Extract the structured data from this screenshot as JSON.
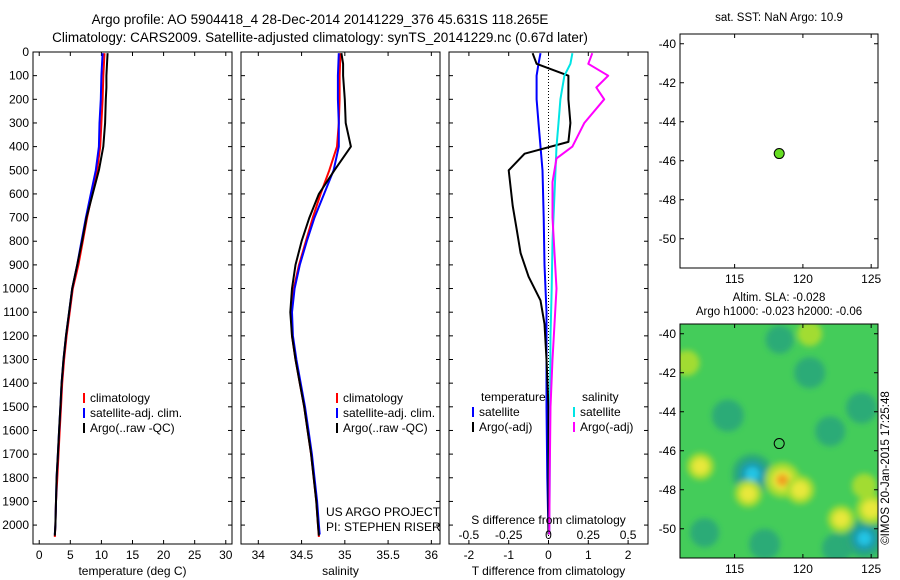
{
  "title": {
    "line1": "Argo profile: AO 5904418_4 28-Dec-2014 20141229_376 45.631S 118.265E",
    "line2": "Climatology: CARS2009. Satellite-adjusted climatology: synTS_20141229.nc (0.67d later)"
  },
  "colors": {
    "climatology": "#ff0000",
    "satellite": "#0000ff",
    "argo": "#000000",
    "salinity_satellite": "#00e5e5",
    "salinity_argo": "#ff00ff",
    "float_marker": "#66dd22"
  },
  "chart_data": [
    {
      "id": "temperature",
      "type": "line",
      "xlabel": "temperature (deg C)",
      "ylabel": "",
      "xlim": [
        -1,
        31
      ],
      "ylim": [
        2080,
        0
      ],
      "xticks": [
        0,
        5,
        10,
        15,
        20,
        25,
        30
      ],
      "yticks": [
        0,
        100,
        200,
        300,
        400,
        500,
        600,
        700,
        800,
        900,
        1000,
        1100,
        1200,
        1300,
        1400,
        1500,
        1600,
        1700,
        1800,
        1900,
        2000
      ],
      "legend": [
        "climatology",
        "satellite-adj. clim.",
        "Argo(..raw -QC)"
      ],
      "legend_position": "lower-center",
      "series": [
        {
          "name": "climatology",
          "color": "#ff0000",
          "points": [
            [
              10.5,
              5
            ],
            [
              10.3,
              100
            ],
            [
              10.2,
              200
            ],
            [
              10.0,
              300
            ],
            [
              9.8,
              400
            ],
            [
              9.3,
              500
            ],
            [
              8.5,
              600
            ],
            [
              7.7,
              700
            ],
            [
              7.0,
              800
            ],
            [
              6.3,
              900
            ],
            [
              5.4,
              1000
            ],
            [
              4.9,
              1100
            ],
            [
              4.4,
              1200
            ],
            [
              4.0,
              1300
            ],
            [
              3.7,
              1400
            ],
            [
              3.5,
              1500
            ],
            [
              3.3,
              1600
            ],
            [
              3.1,
              1700
            ],
            [
              2.9,
              1800
            ],
            [
              2.7,
              1900
            ],
            [
              2.6,
              2000
            ],
            [
              2.5,
              2050
            ]
          ]
        },
        {
          "name": "satellite-adj. clim.",
          "color": "#0000ff",
          "points": [
            [
              10.2,
              5
            ],
            [
              10.0,
              100
            ],
            [
              9.9,
              200
            ],
            [
              9.7,
              300
            ],
            [
              9.6,
              400
            ],
            [
              9.1,
              500
            ],
            [
              8.3,
              600
            ],
            [
              7.5,
              700
            ],
            [
              6.8,
              800
            ],
            [
              6.1,
              900
            ],
            [
              5.3,
              1000
            ],
            [
              4.8,
              1100
            ],
            [
              4.3,
              1200
            ],
            [
              3.9,
              1300
            ],
            [
              3.6,
              1400
            ],
            [
              3.4,
              1500
            ],
            [
              3.2,
              1600
            ],
            [
              3.0,
              1700
            ],
            [
              2.8,
              1800
            ],
            [
              2.7,
              1900
            ],
            [
              2.6,
              2000
            ],
            [
              2.5,
              2040
            ]
          ]
        },
        {
          "name": "Argo(..raw -QC)",
          "color": "#000000",
          "points": [
            [
              11.0,
              5
            ],
            [
              10.9,
              50
            ],
            [
              10.8,
              100
            ],
            [
              10.8,
              150
            ],
            [
              10.7,
              200
            ],
            [
              10.6,
              300
            ],
            [
              10.3,
              400
            ],
            [
              9.6,
              500
            ],
            [
              8.6,
              600
            ],
            [
              7.6,
              700
            ],
            [
              6.9,
              800
            ],
            [
              6.1,
              900
            ],
            [
              5.3,
              1000
            ],
            [
              4.8,
              1100
            ],
            [
              4.3,
              1200
            ],
            [
              3.9,
              1300
            ],
            [
              3.6,
              1400
            ],
            [
              3.4,
              1500
            ],
            [
              3.2,
              1600
            ],
            [
              3.0,
              1700
            ],
            [
              2.8,
              1800
            ],
            [
              2.7,
              1900
            ],
            [
              2.6,
              2000
            ],
            [
              2.5,
              2045
            ]
          ]
        }
      ]
    },
    {
      "id": "salinity",
      "type": "line",
      "xlabel": "salinity",
      "ylabel": "",
      "xlim": [
        33.8,
        36.1
      ],
      "ylim": [
        2080,
        0
      ],
      "xticks": [
        34,
        34.5,
        35,
        35.5,
        36
      ],
      "legend": [
        "climatology",
        "satellite-adj. clim.",
        "Argo(..raw -QC)"
      ],
      "legend_position": "lower-right",
      "annotation": [
        "US ARGO PROJECT",
        "PI: STEPHEN RISER"
      ],
      "series": [
        {
          "name": "climatology",
          "color": "#ff0000",
          "points": [
            [
              34.95,
              5
            ],
            [
              34.94,
              100
            ],
            [
              34.94,
              200
            ],
            [
              34.93,
              300
            ],
            [
              34.91,
              400
            ],
            [
              34.82,
              500
            ],
            [
              34.72,
              600
            ],
            [
              34.63,
              700
            ],
            [
              34.55,
              800
            ],
            [
              34.47,
              900
            ],
            [
              34.41,
              1000
            ],
            [
              34.38,
              1100
            ],
            [
              34.39,
              1200
            ],
            [
              34.43,
              1300
            ],
            [
              34.48,
              1400
            ],
            [
              34.53,
              1500
            ],
            [
              34.57,
              1600
            ],
            [
              34.61,
              1700
            ],
            [
              34.64,
              1800
            ],
            [
              34.67,
              1900
            ],
            [
              34.69,
              2000
            ],
            [
              34.7,
              2050
            ]
          ]
        },
        {
          "name": "satellite-adj. clim.",
          "color": "#0000ff",
          "points": [
            [
              34.93,
              5
            ],
            [
              34.92,
              100
            ],
            [
              34.92,
              200
            ],
            [
              34.93,
              300
            ],
            [
              34.93,
              400
            ],
            [
              34.87,
              500
            ],
            [
              34.76,
              600
            ],
            [
              34.65,
              700
            ],
            [
              34.56,
              800
            ],
            [
              34.48,
              900
            ],
            [
              34.42,
              1000
            ],
            [
              34.39,
              1100
            ],
            [
              34.4,
              1200
            ],
            [
              34.44,
              1300
            ],
            [
              34.49,
              1400
            ],
            [
              34.54,
              1500
            ],
            [
              34.58,
              1600
            ],
            [
              34.62,
              1700
            ],
            [
              34.65,
              1800
            ],
            [
              34.68,
              1900
            ],
            [
              34.7,
              2000
            ],
            [
              34.71,
              2040
            ]
          ]
        },
        {
          "name": "Argo(..raw -QC)",
          "color": "#000000",
          "points": [
            [
              34.96,
              5
            ],
            [
              34.98,
              50
            ],
            [
              34.98,
              100
            ],
            [
              35.0,
              200
            ],
            [
              35.01,
              300
            ],
            [
              35.07,
              400
            ],
            [
              34.88,
              500
            ],
            [
              34.7,
              600
            ],
            [
              34.59,
              700
            ],
            [
              34.5,
              800
            ],
            [
              34.43,
              900
            ],
            [
              34.39,
              1000
            ],
            [
              34.37,
              1100
            ],
            [
              34.39,
              1200
            ],
            [
              34.43,
              1300
            ],
            [
              34.48,
              1400
            ],
            [
              34.53,
              1500
            ],
            [
              34.57,
              1600
            ],
            [
              34.61,
              1700
            ],
            [
              34.64,
              1800
            ],
            [
              34.67,
              1900
            ],
            [
              34.69,
              2000
            ],
            [
              34.7,
              2045
            ]
          ]
        }
      ]
    },
    {
      "id": "difference",
      "type": "line",
      "xlabel": "T difference from climatology",
      "xlabel2": "S difference from climatology",
      "xlim": [
        -2.5,
        2.5
      ],
      "ylim": [
        2080,
        0
      ],
      "xticks": [
        -2,
        -1,
        0,
        1,
        2
      ],
      "xticklabels": [
        "-2",
        "-1",
        "0",
        "1",
        "2"
      ],
      "xticks2": [
        -2,
        -1,
        0,
        1,
        2
      ],
      "xticklabels2": [
        "-0.5",
        "-0.25",
        "0",
        "0.25",
        "0.5"
      ],
      "legend_headers": [
        "temperature",
        "salinity"
      ],
      "legend": [
        "satellite",
        "Argo(-adj)",
        "satellite",
        "Argo(-adj)"
      ],
      "series": [
        {
          "name": "temperature satellite",
          "color": "#0000ff",
          "points": [
            [
              -0.2,
              5
            ],
            [
              -0.25,
              50
            ],
            [
              -0.3,
              100
            ],
            [
              -0.3,
              200
            ],
            [
              -0.25,
              300
            ],
            [
              -0.2,
              400
            ],
            [
              -0.15,
              500
            ],
            [
              -0.12,
              700
            ],
            [
              -0.1,
              900
            ],
            [
              -0.05,
              1100
            ],
            [
              -0.05,
              1300
            ],
            [
              -0.05,
              1500
            ],
            [
              -0.03,
              1800
            ],
            [
              0,
              2040
            ]
          ]
        },
        {
          "name": "temperature Argo(-adj)",
          "color": "#000000",
          "points": [
            [
              -0.4,
              5
            ],
            [
              -0.3,
              50
            ],
            [
              0.5,
              100
            ],
            [
              0.5,
              200
            ],
            [
              0.55,
              300
            ],
            [
              0.5,
              380
            ],
            [
              -0.6,
              430
            ],
            [
              -1.0,
              500
            ],
            [
              -0.9,
              650
            ],
            [
              -0.8,
              750
            ],
            [
              -0.7,
              850
            ],
            [
              -0.5,
              950
            ],
            [
              -0.2,
              1050
            ],
            [
              -0.1,
              1150
            ],
            [
              -0.05,
              1300
            ],
            [
              0,
              1500
            ],
            [
              0,
              1800
            ],
            [
              0,
              2040
            ]
          ]
        },
        {
          "name": "salinity satellite",
          "color": "#00e5e5",
          "points": [
            [
              0.6,
              5
            ],
            [
              0.55,
              50
            ],
            [
              0.4,
              100
            ],
            [
              0.3,
              200
            ],
            [
              0.25,
              300
            ],
            [
              0.2,
              400
            ],
            [
              0.15,
              600
            ],
            [
              0.1,
              800
            ],
            [
              0.08,
              1000
            ],
            [
              0.05,
              1200
            ],
            [
              0.04,
              1500
            ],
            [
              0.03,
              1800
            ],
            [
              0.02,
              2040
            ]
          ]
        },
        {
          "name": "salinity Argo(-adj)",
          "color": "#ff00ff",
          "points": [
            [
              1.1,
              5
            ],
            [
              1.0,
              50
            ],
            [
              1.5,
              100
            ],
            [
              1.2,
              150
            ],
            [
              1.4,
              200
            ],
            [
              0.9,
              300
            ],
            [
              0.6,
              400
            ],
            [
              0.2,
              450
            ],
            [
              0.1,
              550
            ],
            [
              0.1,
              700
            ],
            [
              0.15,
              850
            ],
            [
              0.2,
              1000
            ],
            [
              0.15,
              1150
            ],
            [
              0.1,
              1300
            ],
            [
              0.05,
              1500
            ],
            [
              0.03,
              1800
            ],
            [
              0.02,
              2040
            ]
          ]
        }
      ]
    },
    {
      "id": "sst_map",
      "type": "scatter",
      "title": "sat. SST: NaN Argo: 10.9",
      "xlim": [
        111,
        125.5
      ],
      "ylim": [
        -51.5,
        -39.5
      ],
      "xticks": [
        115,
        120,
        125
      ],
      "yticks": [
        -40,
        -42,
        -44,
        -46,
        -48,
        -50
      ],
      "points": [
        {
          "x": 118.265,
          "y": -45.631
        }
      ]
    },
    {
      "id": "sla_map",
      "type": "heatmap",
      "title_lines": [
        "Altim. SLA: -0.028",
        "Argo h1000: -0.023 h2000: -0.06"
      ],
      "xlim": [
        111,
        125.5
      ],
      "ylim": [
        -51.5,
        -39.5
      ],
      "xticks": [
        115,
        120,
        125
      ],
      "yticks": [
        -40,
        -42,
        -44,
        -46,
        -48,
        -50
      ],
      "marker": {
        "x": 118.265,
        "y": -45.631
      },
      "highs": [
        {
          "x": 118.5,
          "y": -47.5,
          "level": 1.0
        },
        {
          "x": 119.8,
          "y": -48.0,
          "level": 0.6
        },
        {
          "x": 116.0,
          "y": -48.2,
          "level": 0.5
        },
        {
          "x": 112.5,
          "y": -46.8,
          "level": 0.5
        },
        {
          "x": 125.0,
          "y": -49.0,
          "level": 0.7
        },
        {
          "x": 122.8,
          "y": -49.5,
          "level": 0.5
        },
        {
          "x": 124.5,
          "y": -47.8,
          "level": 0.35
        },
        {
          "x": 120.5,
          "y": -40.0,
          "level": 0.35
        },
        {
          "x": 111.5,
          "y": -41.5,
          "level": 0.4
        }
      ],
      "lows": [
        {
          "x": 116.3,
          "y": -47.2,
          "level": 0.95
        },
        {
          "x": 124.5,
          "y": -50.5,
          "level": 0.9
        },
        {
          "x": 114.5,
          "y": -44.2,
          "level": 0.5
        },
        {
          "x": 120.5,
          "y": -42.0,
          "level": 0.45
        },
        {
          "x": 122.0,
          "y": -45.0,
          "level": 0.4
        },
        {
          "x": 124.3,
          "y": -43.8,
          "level": 0.45
        },
        {
          "x": 117.2,
          "y": -50.8,
          "level": 0.45
        },
        {
          "x": 122.5,
          "y": -51.0,
          "level": 0.4
        },
        {
          "x": 112.8,
          "y": -50.2,
          "level": 0.35
        },
        {
          "x": 118.3,
          "y": -40.3,
          "level": 0.3
        }
      ]
    }
  ],
  "credit": "©IMOS 20-Jan-2015 17:25:48"
}
